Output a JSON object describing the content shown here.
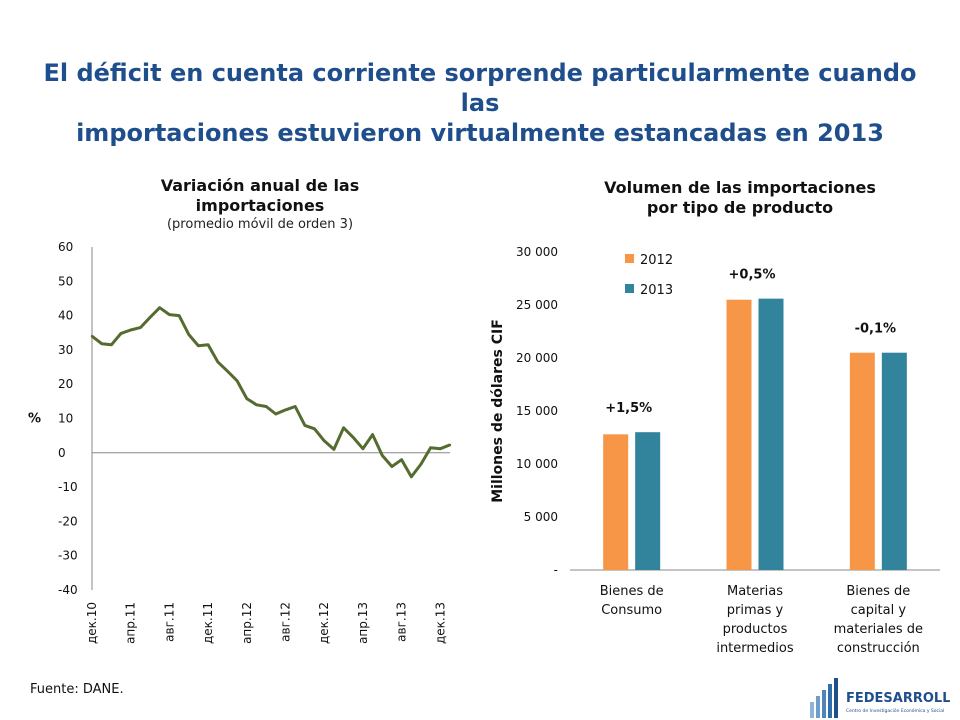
{
  "slide": {
    "title_line1": "El déficit en cuenta corriente sorprende particularmente cuando las",
    "title_line2": "importaciones estuvieron virtualmente estancadas en 2013",
    "title_color": "#1f4e8c",
    "source": "Fuente: DANE.",
    "logo_text": "FEDESARROLLO",
    "logo_subtext": "Centro de Investigación Económica y Social",
    "logo_color": "#1f4e8c"
  },
  "chart_data": [
    {
      "type": "line",
      "title": "Variación anual de las importaciones",
      "subtitle": "(promedio móvil de orden 3)",
      "ylabel": "%",
      "ylim": [
        -40,
        60
      ],
      "yticks": [
        60,
        50,
        40,
        30,
        20,
        10,
        0,
        -10,
        -20,
        -30,
        -40
      ],
      "xtick_labels": [
        "дек.10",
        "апр.11",
        "авг.11",
        "дек.11",
        "апр.12",
        "авг.12",
        "дек.12",
        "апр.13",
        "авг.13",
        "дек.13"
      ],
      "line_color": "#556b2f",
      "series": [
        {
          "values": [
            34,
            31.8,
            31.5,
            34.8,
            35.8,
            36.5,
            39.5,
            42.3,
            40.3,
            40,
            34.5,
            31.2,
            31.5,
            26.5,
            23.8,
            21,
            15.8,
            14,
            13.5,
            11.3,
            12.5,
            13.5,
            8,
            7,
            3.5,
            1,
            7.3,
            4.5,
            1.2,
            5.3,
            -0.8,
            -4,
            -2,
            -7,
            -3.3,
            1.5,
            1.2,
            2.3
          ]
        }
      ]
    },
    {
      "type": "bar",
      "title": "Volumen de las importaciones por tipo de producto",
      "ylabel": "Millones de dólares CIF",
      "ylim": [
        0,
        30000
      ],
      "ytick_labels": [
        "30 000",
        "25 000",
        "20 000",
        "15 000",
        "10 000",
        "5 000",
        "-"
      ],
      "categories": [
        [
          "Bienes de",
          "Consumo"
        ],
        [
          "Materias",
          "primas y",
          "productos",
          "intermedios"
        ],
        [
          "Bienes de",
          "capital y",
          "materiales de",
          "construcción"
        ]
      ],
      "series": [
        {
          "name": "2012",
          "color": "#f79646",
          "values": [
            12800,
            25500,
            20500
          ]
        },
        {
          "name": "2013",
          "color": "#31849b",
          "values": [
            13000,
            25600,
            20500
          ]
        }
      ],
      "annotations": [
        "+1,5%",
        "+0,5%",
        "-0,1%"
      ],
      "legend": "top-left"
    }
  ]
}
